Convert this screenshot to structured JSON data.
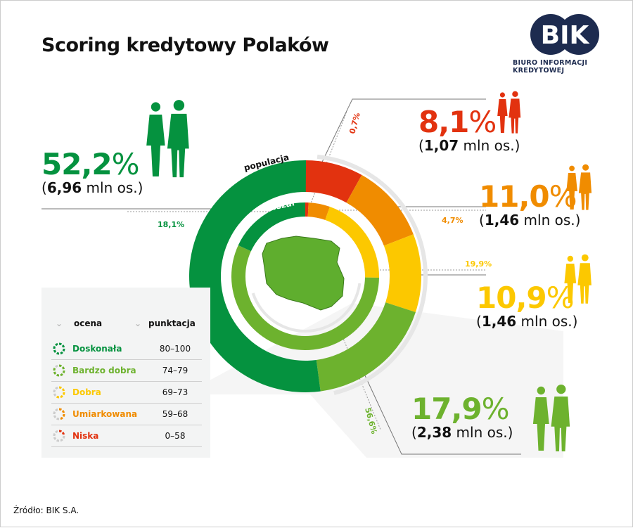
{
  "title": "Scoring kredytowy Polaków",
  "logo": {
    "text": "BIK",
    "subtitle": "BIURO INFORMACJI KREDYTOWEJ",
    "color": "#1d2b4f"
  },
  "source": "Źródło: BIK S.A.",
  "chart_data": {
    "type": "donut",
    "rings": [
      {
        "label": "populacja",
        "categories": [
          "Niska",
          "Umiarkowana",
          "Dobra",
          "Bardzo dobra",
          "Doskonała"
        ],
        "values": [
          8.1,
          11.0,
          10.9,
          17.9,
          52.2
        ],
        "unit": "%"
      },
      {
        "label": "obszar",
        "categories": [
          "Niska",
          "Umiarkowana",
          "Dobra",
          "Bardzo dobra",
          "Doskonała"
        ],
        "values": [
          0.7,
          4.7,
          19.9,
          56.6,
          18.1
        ],
        "unit": "%"
      }
    ],
    "colors": {
      "Niska": "#e2320f",
      "Umiarkowana": "#f08c00",
      "Dobra": "#fcc800",
      "Bardzo dobra": "#6db22e",
      "Doskonała": "#05923f"
    }
  },
  "callouts": [
    {
      "pct": "52,2",
      "mln": "6,96",
      "color": "#05923f"
    },
    {
      "pct": "8,1",
      "mln": "1,07",
      "color": "#e2320f"
    },
    {
      "pct": "11,0",
      "mln": "1,46",
      "color": "#f08c00"
    },
    {
      "pct": "10,9",
      "mln": "1,46",
      "color": "#fcc800"
    },
    {
      "pct": "17,9",
      "mln": "2,38",
      "color": "#6db22e"
    }
  ],
  "area_labels": [
    "0,7%",
    "4,7%",
    "19,9%",
    "56,6%",
    "18,1%"
  ],
  "mln_suffix": " mln os.)",
  "mln_prefix": "(",
  "pct_symbol": "%",
  "legend": {
    "header_rating": "ocena",
    "header_score": "punktacja",
    "rows": [
      {
        "name": "Doskonała",
        "score": "80–100",
        "color": "#05923f"
      },
      {
        "name": "Bardzo dobra",
        "score": "74–79",
        "color": "#6db22e"
      },
      {
        "name": "Dobra",
        "score": "69–73",
        "color": "#fcc800"
      },
      {
        "name": "Umiarkowana",
        "score": "59–68",
        "color": "#f08c00"
      },
      {
        "name": "Niska",
        "score": "0–58",
        "color": "#e2320f"
      }
    ]
  }
}
